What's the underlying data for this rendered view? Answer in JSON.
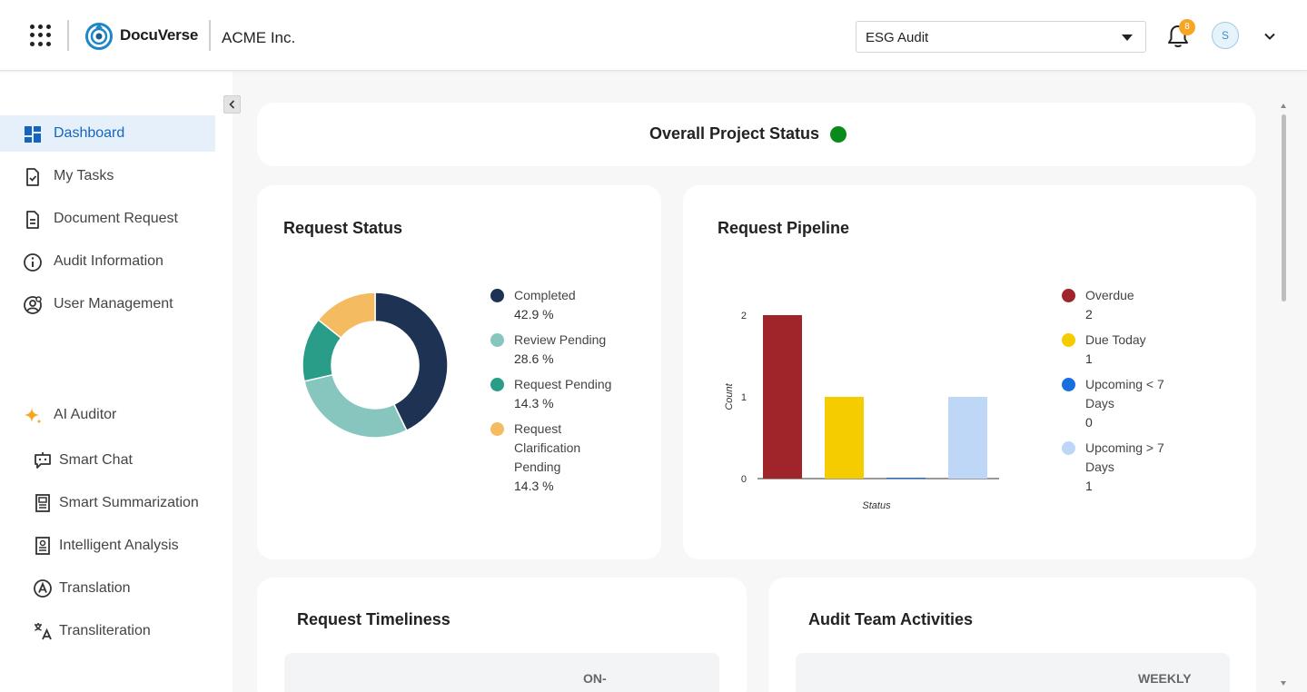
{
  "header": {
    "brand": "DocuVerse",
    "company": "ACME Inc.",
    "project_select": "ESG Audit",
    "notification_count": "8",
    "avatar_initial": "S"
  },
  "sidebar": {
    "items": [
      {
        "label": "Dashboard",
        "icon": "dashboard-icon",
        "active": true
      },
      {
        "label": "My Tasks",
        "icon": "task-check-icon"
      },
      {
        "label": "Document Request",
        "icon": "document-icon"
      },
      {
        "label": "Audit Information",
        "icon": "info-icon"
      },
      {
        "label": "User Management",
        "icon": "user-settings-icon"
      }
    ],
    "ai_section": {
      "label": "AI Auditor",
      "icon": "sparkle-icon",
      "items": [
        {
          "label": "Smart Chat",
          "icon": "chat-bot-icon"
        },
        {
          "label": "Smart Summarization",
          "icon": "summary-doc-icon"
        },
        {
          "label": "Intelligent Analysis",
          "icon": "analysis-doc-icon"
        },
        {
          "label": "Translation",
          "icon": "translate-icon"
        },
        {
          "label": "Transliteration",
          "icon": "transliterate-icon"
        }
      ]
    }
  },
  "overall_status": {
    "title": "Overall Project Status",
    "status_color": "#0a8a1a"
  },
  "request_status": {
    "title": "Request Status",
    "legend": [
      {
        "label": "Completed",
        "value": "42.9 %"
      },
      {
        "label": "Review Pending",
        "value": "28.6 %"
      },
      {
        "label": "Request Pending",
        "value": "14.3 %"
      },
      {
        "label": "Request Clarification Pending",
        "value": "14.3 %"
      }
    ]
  },
  "request_pipeline": {
    "title": "Request Pipeline",
    "legend": [
      {
        "label": "Overdue",
        "value": "2"
      },
      {
        "label": "Due Today",
        "value": "1"
      },
      {
        "label": "Upcoming < 7 Days",
        "value": "0"
      },
      {
        "label": "Upcoming > 7 Days",
        "value": "1"
      }
    ]
  },
  "request_timeliness": {
    "title": "Request Timeliness",
    "header_fragment": "ON-"
  },
  "audit_team": {
    "title": "Audit Team Activities",
    "header_fragment": "WEEKLY"
  },
  "chart_data": [
    {
      "type": "pie",
      "categories": [
        "Completed",
        "Review Pending",
        "Request Pending",
        "Request Clarification Pending"
      ],
      "values": [
        42.9,
        28.6,
        14.3,
        14.3
      ],
      "colors": [
        "#1e3354",
        "#86c6bf",
        "#2a9d88",
        "#f4bb61"
      ],
      "donut": true
    },
    {
      "type": "bar",
      "categories": [
        "Overdue",
        "Due Today",
        "Upcoming < 7 Days",
        "Upcoming > 7 Days"
      ],
      "values": [
        2,
        1,
        0,
        1
      ],
      "colors": [
        "#a0252b",
        "#f5cc00",
        "#1a6fe0",
        "#bed7f7"
      ],
      "xlabel": "Status",
      "ylabel": "Count",
      "yticks": [
        "0",
        "1",
        "2"
      ],
      "ylim": [
        0,
        2
      ],
      "legend_placement": "right"
    }
  ]
}
